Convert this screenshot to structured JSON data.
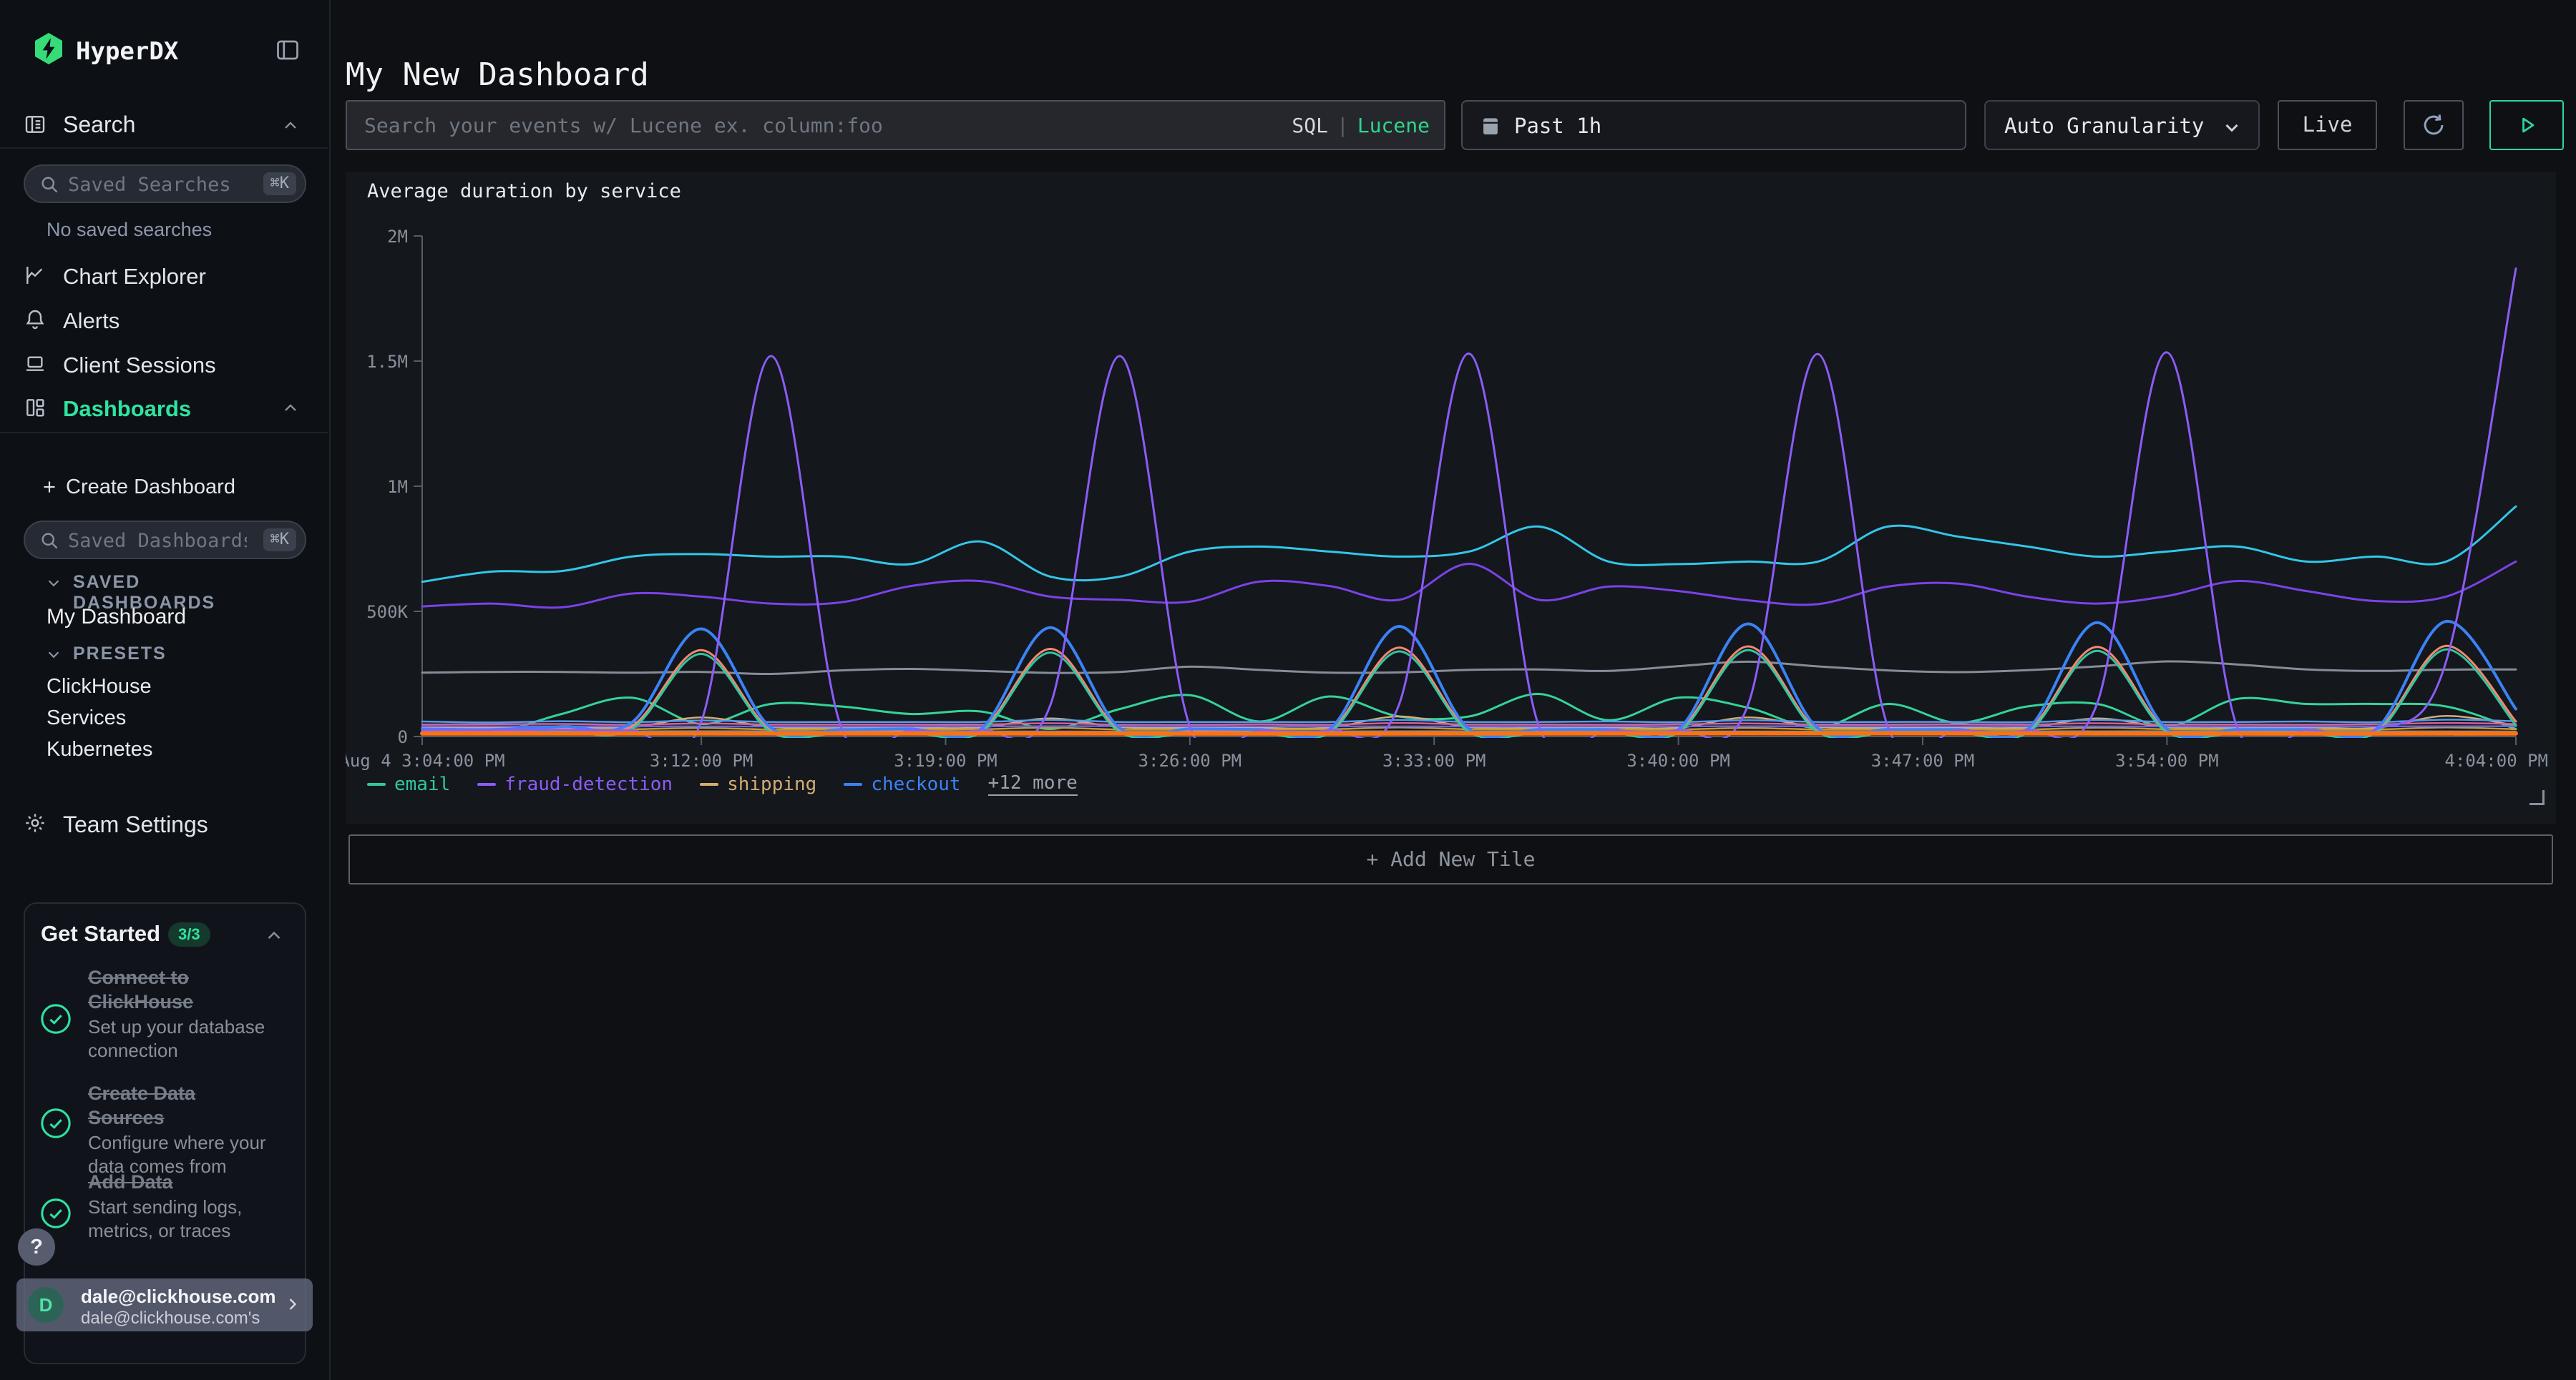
{
  "colors": {
    "page_bg": "#0e1014",
    "sidebar_bg": "#0d1015",
    "panel_bg": "#14171c",
    "brand_green": "#35dc78",
    "accent_green": "#2fe3a0",
    "lucene": "#2fd68a",
    "play": "#2fd6a0",
    "badge_bg": "#15392c",
    "legend_more": "#9aa2ad",
    "axis": "#565d66",
    "user_chip_bg": "rgba(101,107,128,0.78)"
  },
  "app": {
    "brand": "HyperDX"
  },
  "sidebar": {
    "search_section": "Search",
    "saved_searches_input": {
      "placeholder": "Saved Searches",
      "shortcut": "⌘K"
    },
    "no_saved": "No saved searches",
    "items": [
      {
        "label": "Chart Explorer"
      },
      {
        "label": "Alerts"
      },
      {
        "label": "Client Sessions"
      },
      {
        "label": "Dashboards"
      }
    ],
    "create_dashboard": "Create Dashboard",
    "saved_dashboards_input": {
      "placeholder": "Saved Dashboards",
      "shortcut": "⌘K"
    },
    "saved_dashboards_header": "SAVED DASHBOARDS",
    "my_dashboard": "My Dashboard",
    "presets_header": "PRESETS",
    "presets": [
      "ClickHouse",
      "Services",
      "Kubernetes"
    ],
    "team_settings": "Team Settings"
  },
  "get_started": {
    "title": "Get Started",
    "badge": "3/3",
    "items": [
      {
        "title": "Connect to ClickHouse",
        "subtitle": "Set up your database connection",
        "done": true
      },
      {
        "title": "Create Data Sources",
        "subtitle": "Configure where your data comes from",
        "done": true
      },
      {
        "title": "Add Data",
        "subtitle": "Start sending logs, metrics, or traces",
        "done": true
      }
    ],
    "help": "?"
  },
  "user": {
    "avatar_letter": "D",
    "name": "dale@clickhouse.com",
    "team": "dale@clickhouse.com's"
  },
  "header": {
    "title": "My New Dashboard"
  },
  "toolbar": {
    "search_placeholder": "Search your events w/ Lucene ex. column:foo",
    "lang_sql": "SQL",
    "lang_divider": "|",
    "lang_lucene": "Lucene",
    "time_range": "Past 1h",
    "granularity": "Auto Granularity",
    "live": "Live"
  },
  "tile": {
    "title": "Average duration by service"
  },
  "add_tile": "+ Add New Tile",
  "chart_data": {
    "type": "line",
    "title": "Average duration by service",
    "xlabel": "time",
    "ylabel": "",
    "grid": false,
    "legend_position": "bottom",
    "xlim_minutes": [
      0,
      60
    ],
    "ylim": [
      0,
      2000
    ],
    "y_scale_note": "values in thousands (K); axis shows 0..2M",
    "x_ticks": [
      {
        "m": 0,
        "label": "Aug 4 3:04:00 PM"
      },
      {
        "m": 8,
        "label": "3:12:00 PM"
      },
      {
        "m": 15,
        "label": "3:19:00 PM"
      },
      {
        "m": 22,
        "label": "3:26:00 PM"
      },
      {
        "m": 29,
        "label": "3:33:00 PM"
      },
      {
        "m": 36,
        "label": "3:40:00 PM"
      },
      {
        "m": 43,
        "label": "3:47:00 PM"
      },
      {
        "m": 50,
        "label": "3:54:00 PM"
      },
      {
        "m": 60,
        "label": "4:04:00 PM"
      }
    ],
    "y_ticks": [
      {
        "v": 0,
        "label": "0"
      },
      {
        "v": 500,
        "label": "500K"
      },
      {
        "v": 1000,
        "label": "1M"
      },
      {
        "v": 1500,
        "label": "1.5M"
      },
      {
        "v": 2000,
        "label": "2M"
      }
    ],
    "legend": [
      {
        "label": "email",
        "color": "#2fc7a0"
      },
      {
        "label": "fraud-detection",
        "color": "#8b5cf6"
      },
      {
        "label": "shipping",
        "color": "#d4ac72"
      },
      {
        "label": "checkout",
        "color": "#3b82f6"
      }
    ],
    "legend_more": "+12 more",
    "series": [
      {
        "name": "unlabeled-gray",
        "color": "#858d99",
        "w": 3,
        "values": [
          255,
          258,
          258,
          255,
          258,
          250,
          264,
          270,
          262,
          254,
          258,
          279,
          266,
          255,
          256,
          266,
          268,
          262,
          281,
          299,
          280,
          264,
          257,
          265,
          280,
          300,
          288,
          268,
          262,
          267,
          268
        ]
      },
      {
        "name": "unlabeled-purple",
        "color": "#7a42e8",
        "w": 3,
        "values": [
          520,
          531,
          516,
          571,
          559,
          531,
          536,
          601,
          621,
          559,
          546,
          539,
          619,
          601,
          546,
          690,
          546,
          599,
          581,
          544,
          529,
          599,
          611,
          559,
          531,
          561,
          621,
          581,
          541,
          559,
          699
        ]
      },
      {
        "name": "unlabeled-cyan",
        "color": "#33c6e8",
        "w": 3,
        "values": [
          618,
          659,
          661,
          719,
          729,
          719,
          719,
          689,
          779,
          639,
          639,
          739,
          759,
          739,
          719,
          739,
          839,
          699,
          689,
          699,
          699,
          839,
          799,
          759,
          719,
          739,
          759,
          699,
          719,
          699,
          919
        ]
      },
      {
        "name": "unlabeled-emerald",
        "color": "#34d399",
        "w": 3,
        "values": [
          12,
          15,
          90,
          155,
          50,
          130,
          120,
          90,
          100,
          30,
          110,
          165,
          60,
          160,
          80,
          80,
          170,
          65,
          155,
          115,
          35,
          130,
          55,
          120,
          130,
          40,
          150,
          130,
          130,
          120,
          30
        ]
      },
      {
        "name": "shipping",
        "color": "#d4ac72",
        "w": 2.5,
        "values": [
          36,
          35,
          36,
          37,
          76,
          38,
          34,
          35,
          36,
          72,
          37,
          35,
          34,
          36,
          80,
          38,
          34,
          36,
          35,
          76,
          38,
          34,
          35,
          36,
          72,
          37,
          34,
          36,
          35,
          82,
          44
        ]
      },
      {
        "name": "unlabeled-yellow",
        "color": "#c29a2e",
        "w": 2.5,
        "values": [
          28,
          28,
          29,
          29,
          34,
          28,
          29,
          28,
          29,
          35,
          28,
          28,
          28,
          29,
          36,
          29,
          28,
          28,
          28,
          34,
          28,
          28,
          29,
          28,
          35,
          29,
          28,
          28,
          28,
          36,
          29
        ]
      },
      {
        "name": "unlabeled-pink",
        "color": "#d85f8f",
        "w": 2.5,
        "values": [
          48,
          49,
          50,
          47,
          52,
          48,
          48,
          48,
          48,
          53,
          47,
          47,
          49,
          47,
          54,
          48,
          48,
          47,
          49,
          52,
          48,
          48,
          49,
          48,
          53,
          48,
          48,
          47,
          49,
          54,
          50
        ]
      },
      {
        "name": "unlabeled-skyblue",
        "color": "#4f9cf0",
        "w": 2.5,
        "values": [
          60,
          56,
          61,
          57,
          64,
          58,
          58,
          58,
          58,
          66,
          58,
          58,
          58,
          58,
          66,
          58,
          58,
          60,
          57,
          65,
          58,
          58,
          58,
          57,
          66,
          58,
          58,
          60,
          57,
          67,
          61
        ]
      },
      {
        "name": "unlabeled-slate",
        "color": "#7d8796",
        "w": 2.5,
        "values": [
          20,
          21,
          20,
          21,
          20,
          21,
          20
        ]
      },
      {
        "name": "unlabeled-indigo",
        "color": "#6366f1",
        "w": 2.5,
        "values": [
          41,
          40,
          41,
          40,
          41,
          40,
          41
        ]
      },
      {
        "name": "unlabeled-red",
        "color": "#ef4444",
        "w": 2.5,
        "values": [
          16,
          16,
          17,
          16,
          17,
          16,
          16
        ]
      },
      {
        "name": "unlabeled-coral",
        "color": "#f8876f",
        "w": 3,
        "values": [
          22,
          22,
          30,
          40,
          345,
          26,
          21,
          23,
          24,
          350,
          25,
          21,
          22,
          23,
          355,
          26,
          21,
          23,
          24,
          360,
          25,
          21,
          22,
          23,
          358,
          26,
          21,
          23,
          24,
          362,
          60
        ]
      },
      {
        "name": "email",
        "color": "#2fc7a0",
        "w": 3,
        "values": [
          15,
          15,
          20,
          30,
          330,
          18,
          14,
          15,
          16,
          335,
          17,
          15,
          15,
          15,
          340,
          18,
          14,
          15,
          16,
          345,
          17,
          15,
          15,
          15,
          342,
          18,
          14,
          15,
          16,
          348,
          45
        ]
      },
      {
        "name": "checkout",
        "color": "#3b82f6",
        "w": 4,
        "values": [
          30,
          28,
          40,
          55,
          430,
          34,
          28,
          30,
          28,
          435,
          32,
          30,
          28,
          28,
          440,
          30,
          28,
          28,
          28,
          450,
          32,
          28,
          28,
          28,
          455,
          30,
          28,
          28,
          30,
          460,
          110
        ]
      },
      {
        "name": "fraud-detection",
        "color": "#8b5cf6",
        "w": 3,
        "values": [
          25,
          26,
          27,
          25,
          60,
          1520,
          40,
          25,
          26,
          125,
          1520,
          40,
          25,
          26,
          130,
          1530,
          42,
          25,
          26,
          128,
          1528,
          40,
          25,
          25,
          132,
          1535,
          42,
          26,
          28,
          300,
          1870
        ]
      },
      {
        "name": "unlabeled-orange",
        "color": "#f97316",
        "w": 6,
        "values": [
          12,
          12,
          12,
          12,
          13,
          12,
          12
        ]
      }
    ]
  }
}
